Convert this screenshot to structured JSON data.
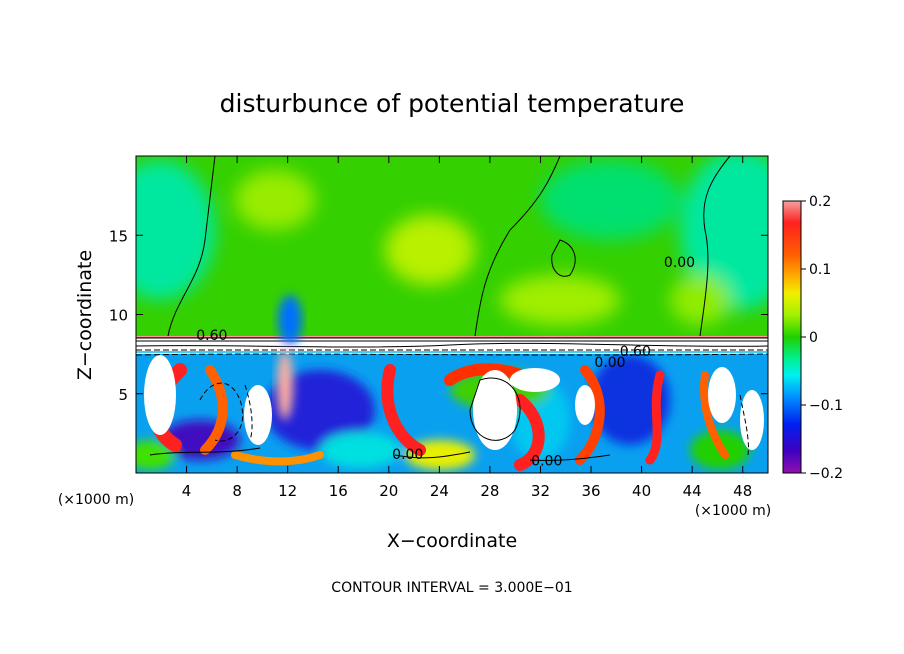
{
  "chart_data": {
    "type": "heatmap",
    "title": "disturbunce of potential temperature",
    "xlabel": "X−coordinate",
    "ylabel": "Z−coordinate",
    "x_unit": "(×1000 m)",
    "z_unit": "(×1000 m)",
    "xlim": [
      0,
      50
    ],
    "ylim": [
      0,
      20
    ],
    "x_ticks": [
      4,
      8,
      12,
      16,
      20,
      24,
      28,
      32,
      36,
      40,
      44,
      48
    ],
    "y_ticks": [
      5,
      10,
      15
    ],
    "colorbar": {
      "range": [
        -0.2,
        0.2
      ],
      "ticks": [
        "0.2",
        "0.1",
        "0",
        "−0.1",
        "−0.2"
      ],
      "colors": [
        "#f5a0a0",
        "#ff3030",
        "#f00000",
        "#ff6000",
        "#ff9000",
        "#ffc000",
        "#f0f000",
        "#a8f000",
        "#50e000",
        "#20d000",
        "#00e040",
        "#00f0a0",
        "#00f0f0",
        "#00c8ff",
        "#0090ff",
        "#0050ff",
        "#0010e0",
        "#2000c0",
        "#6000b0",
        "#9010b0"
      ]
    },
    "contour_labels": [
      {
        "text": "0.60",
        "x": 6.0,
        "z": 8.7
      },
      {
        "text": "0.00",
        "x": 43.0,
        "z": 13.3
      },
      {
        "text": "0.60",
        "x": 39.5,
        "z": 7.7
      },
      {
        "text": "0.00",
        "x": 37.5,
        "z": 7.0
      },
      {
        "text": "0.00",
        "x": 21.5,
        "z": 1.2
      },
      {
        "text": "0.00",
        "x": 32.5,
        "z": 0.8
      }
    ],
    "contour_interval": "CONTOUR INTERVAL = 3.000E−01"
  }
}
